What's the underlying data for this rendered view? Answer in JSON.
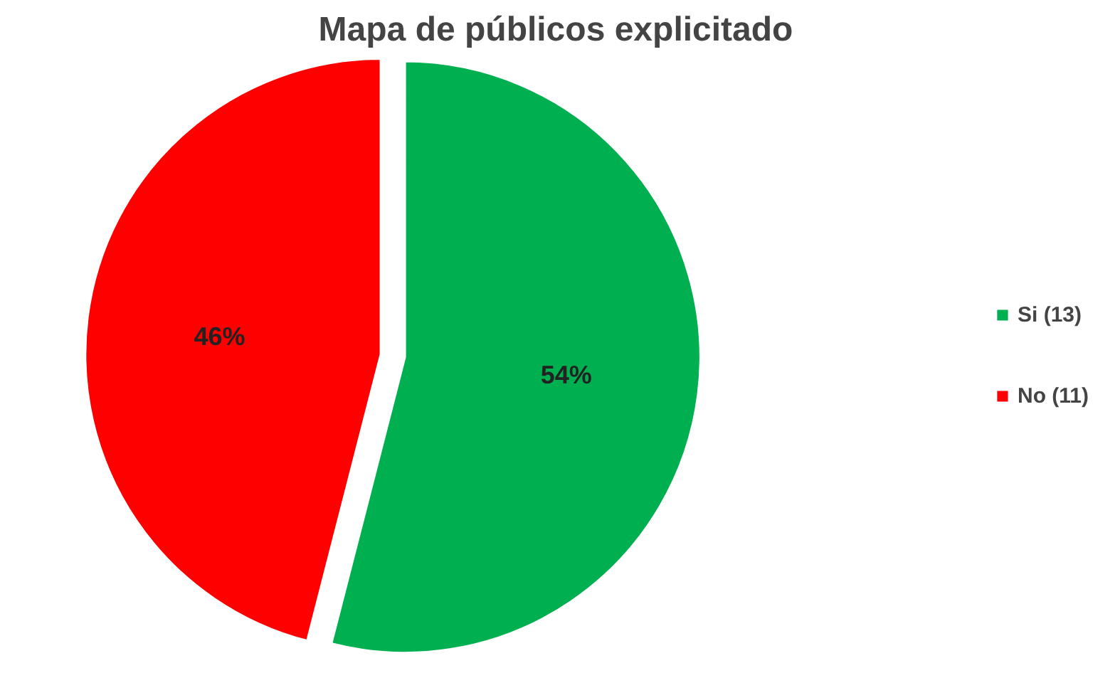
{
  "chart_data": {
    "type": "pie",
    "title": "Mapa de públicos explicitado",
    "categories": [
      "Si (13)",
      "No (11)"
    ],
    "values": [
      54,
      46
    ],
    "colors": [
      "#00b050",
      "#ff0000"
    ],
    "value_labels": [
      "54%",
      "46%"
    ],
    "legend": "right"
  }
}
